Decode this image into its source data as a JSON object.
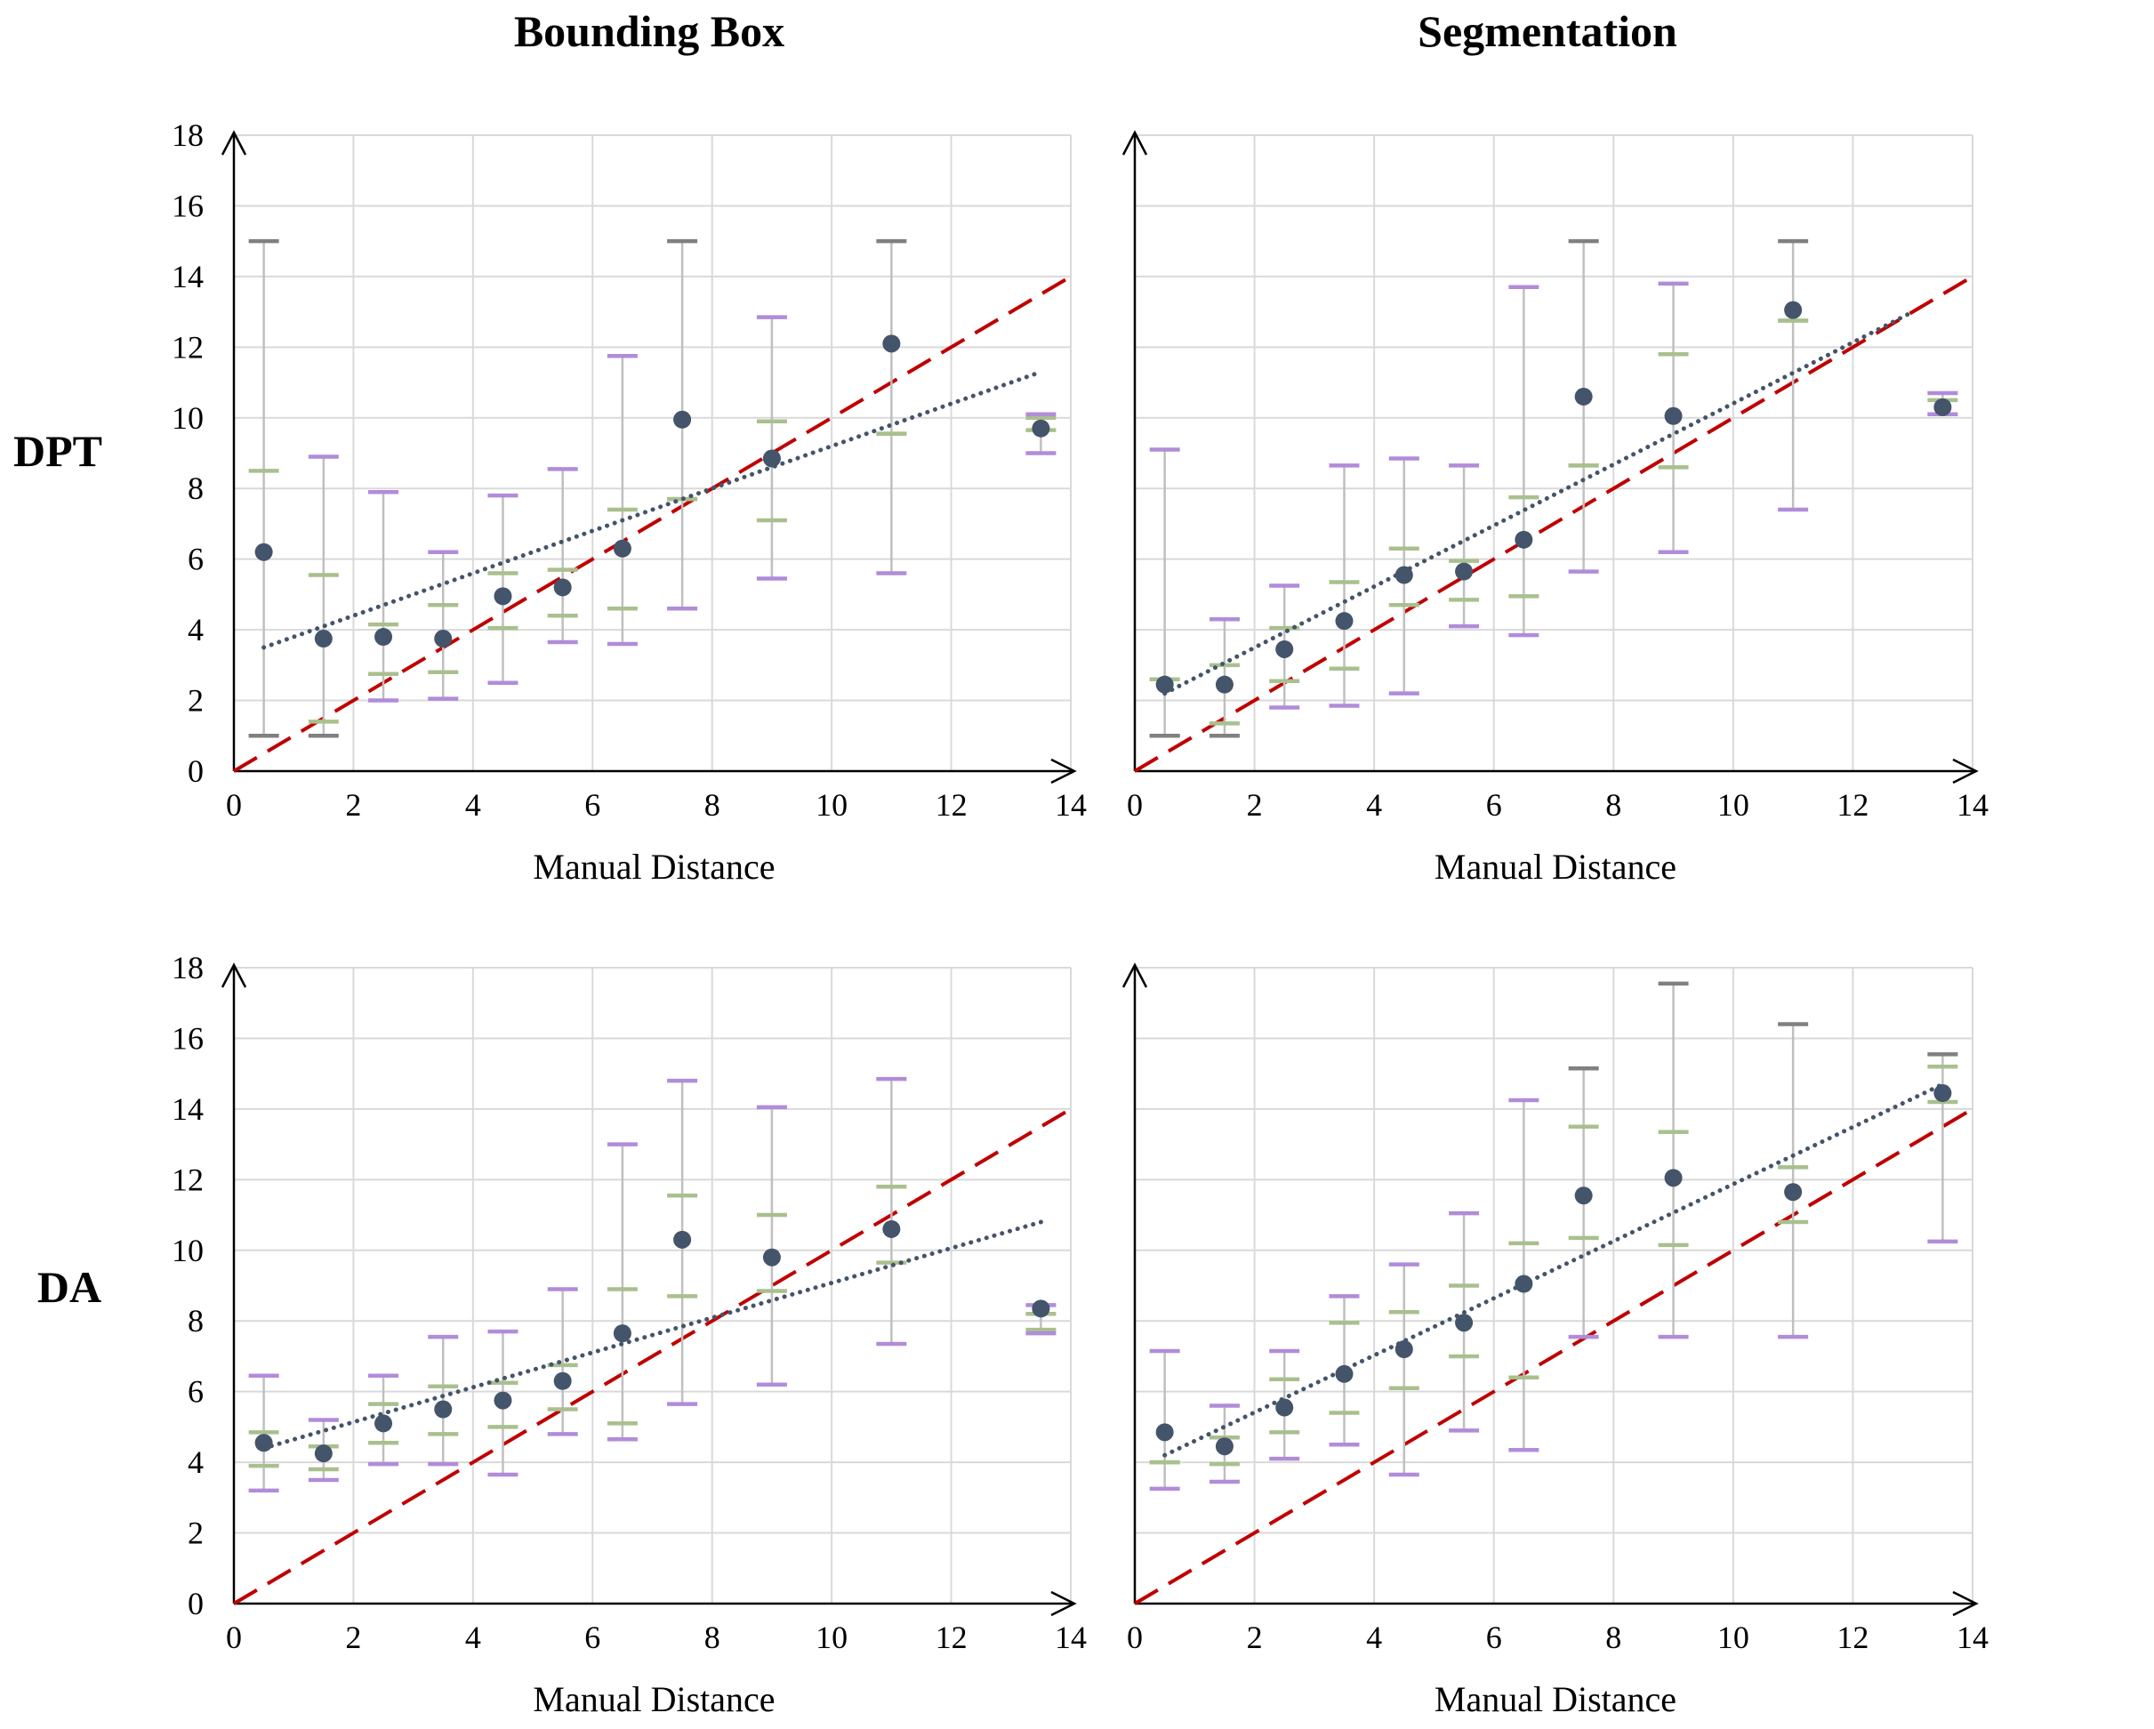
{
  "figure": {
    "column_titles": [
      "Bounding Box",
      "Segmentation"
    ],
    "row_labels": [
      "DPT",
      "DA"
    ],
    "colors": {
      "point": "#44546a",
      "trend": "#44546a",
      "identity": "#c00000",
      "whisker": "#bfbfbf",
      "outer_cap": "#b18cd9",
      "inner_cap": "#a9c08e",
      "outer_cap_at_limit": "#808080",
      "grid": "#d9d9d9"
    }
  },
  "chart_data": [
    {
      "type": "scatter",
      "column": "Bounding Box",
      "row": "DPT",
      "xlabel": "Manual Distance",
      "ylabel": "",
      "xlim": [
        0,
        14
      ],
      "ylim": [
        0,
        18
      ],
      "xticks": [
        0,
        2,
        4,
        6,
        8,
        10,
        12,
        14
      ],
      "yticks": [
        0,
        2,
        4,
        6,
        8,
        10,
        12,
        14,
        16,
        18
      ],
      "grid": true,
      "identity_line": true,
      "trendline": {
        "x0": 0.5,
        "y0": 3.5,
        "x1": 13.5,
        "y1": 11.3
      },
      "points": [
        {
          "x": 0.5,
          "y": 6.2,
          "outer": [
            1.0,
            15.0
          ],
          "inner": [
            1.0,
            8.5
          ]
        },
        {
          "x": 1.5,
          "y": 3.75,
          "outer": [
            1.0,
            8.9
          ],
          "inner": [
            1.4,
            5.55
          ]
        },
        {
          "x": 2.5,
          "y": 3.8,
          "outer": [
            2.0,
            7.9
          ],
          "inner": [
            2.75,
            4.15
          ]
        },
        {
          "x": 3.5,
          "y": 3.75,
          "outer": [
            2.05,
            6.2
          ],
          "inner": [
            2.8,
            4.7
          ]
        },
        {
          "x": 4.5,
          "y": 4.95,
          "outer": [
            2.5,
            7.8
          ],
          "inner": [
            4.05,
            5.6
          ]
        },
        {
          "x": 5.5,
          "y": 5.2,
          "outer": [
            3.65,
            8.55
          ],
          "inner": [
            4.4,
            5.7
          ]
        },
        {
          "x": 6.5,
          "y": 6.3,
          "outer": [
            3.6,
            11.75
          ],
          "inner": [
            4.6,
            7.4
          ]
        },
        {
          "x": 7.5,
          "y": 9.95,
          "outer": [
            4.6,
            15.0
          ],
          "inner": [
            7.7,
            7.7
          ]
        },
        {
          "x": 9.0,
          "y": 8.85,
          "outer": [
            5.45,
            12.85
          ],
          "inner": [
            7.1,
            9.9
          ]
        },
        {
          "x": 11.0,
          "y": 12.1,
          "outer": [
            5.6,
            15.0
          ],
          "inner": [
            9.55,
            9.55
          ]
        },
        {
          "x": 13.5,
          "y": 9.7,
          "outer": [
            9.0,
            10.1
          ],
          "inner": [
            9.65,
            10.0
          ]
        }
      ]
    },
    {
      "type": "scatter",
      "column": "Segmentation",
      "row": "DPT",
      "xlabel": "Manual Distance",
      "ylabel": "",
      "xlim": [
        0,
        14
      ],
      "ylim": [
        0,
        18
      ],
      "xticks": [
        0,
        2,
        4,
        6,
        8,
        10,
        12,
        14
      ],
      "yticks": [],
      "grid": true,
      "identity_line": true,
      "trendline": {
        "x0": 0.5,
        "y0": 2.2,
        "x1": 13.0,
        "y1": 13.0
      },
      "points": [
        {
          "x": 0.5,
          "y": 2.45,
          "outer": [
            1.0,
            9.1
          ],
          "inner": [
            1.0,
            2.6
          ]
        },
        {
          "x": 1.5,
          "y": 2.45,
          "outer": [
            1.0,
            4.3
          ],
          "inner": [
            1.35,
            3.0
          ]
        },
        {
          "x": 2.5,
          "y": 3.45,
          "outer": [
            1.8,
            5.25
          ],
          "inner": [
            2.55,
            4.05
          ]
        },
        {
          "x": 3.5,
          "y": 4.25,
          "outer": [
            1.85,
            8.65
          ],
          "inner": [
            2.9,
            5.35
          ]
        },
        {
          "x": 4.5,
          "y": 5.55,
          "outer": [
            2.2,
            8.85
          ],
          "inner": [
            4.7,
            6.3
          ]
        },
        {
          "x": 5.5,
          "y": 5.65,
          "outer": [
            4.1,
            8.65
          ],
          "inner": [
            4.85,
            5.95
          ]
        },
        {
          "x": 6.5,
          "y": 6.55,
          "outer": [
            3.85,
            13.7
          ],
          "inner": [
            4.95,
            7.75
          ]
        },
        {
          "x": 7.5,
          "y": 10.6,
          "outer": [
            5.65,
            15.0
          ],
          "inner": [
            8.65,
            8.65
          ]
        },
        {
          "x": 9.0,
          "y": 10.05,
          "outer": [
            6.2,
            13.8
          ],
          "inner": [
            8.6,
            11.8
          ]
        },
        {
          "x": 11.0,
          "y": 13.05,
          "outer": [
            7.4,
            15.0
          ],
          "inner": [
            12.75,
            12.75
          ]
        },
        {
          "x": 13.5,
          "y": 10.3,
          "outer": [
            10.1,
            10.7
          ],
          "inner": [
            10.1,
            10.5
          ]
        }
      ]
    },
    {
      "type": "scatter",
      "column": "Bounding Box",
      "row": "DA",
      "xlabel": "Manual Distance",
      "ylabel": "",
      "xlim": [
        0,
        14
      ],
      "ylim": [
        0,
        18
      ],
      "xticks": [
        0,
        2,
        4,
        6,
        8,
        10,
        12,
        14
      ],
      "yticks": [
        0,
        2,
        4,
        6,
        8,
        10,
        12,
        14,
        16,
        18
      ],
      "grid": true,
      "identity_line": true,
      "trendline": {
        "x0": 0.5,
        "y0": 4.4,
        "x1": 13.5,
        "y1": 10.8
      },
      "points": [
        {
          "x": 0.5,
          "y": 4.55,
          "outer": [
            3.2,
            6.45
          ],
          "inner": [
            3.9,
            4.85
          ]
        },
        {
          "x": 1.5,
          "y": 4.25,
          "outer": [
            3.5,
            5.2
          ],
          "inner": [
            3.8,
            4.45
          ]
        },
        {
          "x": 2.5,
          "y": 5.1,
          "outer": [
            3.95,
            6.45
          ],
          "inner": [
            4.55,
            5.65
          ]
        },
        {
          "x": 3.5,
          "y": 5.5,
          "outer": [
            3.95,
            7.55
          ],
          "inner": [
            4.8,
            6.15
          ]
        },
        {
          "x": 4.5,
          "y": 5.75,
          "outer": [
            3.65,
            7.7
          ],
          "inner": [
            5.0,
            6.25
          ]
        },
        {
          "x": 5.5,
          "y": 6.3,
          "outer": [
            4.8,
            8.9
          ],
          "inner": [
            5.5,
            6.75
          ]
        },
        {
          "x": 6.5,
          "y": 7.65,
          "outer": [
            4.65,
            13.0
          ],
          "inner": [
            5.1,
            8.9
          ]
        },
        {
          "x": 7.5,
          "y": 10.3,
          "outer": [
            5.65,
            14.8
          ],
          "inner": [
            8.7,
            11.55
          ]
        },
        {
          "x": 9.0,
          "y": 9.8,
          "outer": [
            6.2,
            14.05
          ],
          "inner": [
            8.85,
            11.0
          ]
        },
        {
          "x": 11.0,
          "y": 10.6,
          "outer": [
            7.35,
            14.85
          ],
          "inner": [
            9.65,
            11.8
          ]
        },
        {
          "x": 13.5,
          "y": 8.35,
          "outer": [
            7.65,
            8.45
          ],
          "inner": [
            7.75,
            8.2
          ]
        }
      ]
    },
    {
      "type": "scatter",
      "column": "Segmentation",
      "row": "DA",
      "xlabel": "Manual Distance",
      "ylabel": "",
      "xlim": [
        0,
        14
      ],
      "ylim": [
        0,
        18
      ],
      "xticks": [
        0,
        2,
        4,
        6,
        8,
        10,
        12,
        14
      ],
      "yticks": [],
      "grid": true,
      "identity_line": true,
      "trendline": {
        "x0": 0.5,
        "y0": 4.2,
        "x1": 13.5,
        "y1": 14.7
      },
      "points": [
        {
          "x": 0.5,
          "y": 4.85,
          "outer": [
            3.25,
            7.15
          ],
          "inner": [
            4.0,
            4.0
          ]
        },
        {
          "x": 1.5,
          "y": 4.45,
          "outer": [
            3.45,
            5.6
          ],
          "inner": [
            3.95,
            4.7
          ]
        },
        {
          "x": 2.5,
          "y": 5.55,
          "outer": [
            4.1,
            7.15
          ],
          "inner": [
            4.85,
            6.35
          ]
        },
        {
          "x": 3.5,
          "y": 6.5,
          "outer": [
            4.5,
            8.7
          ],
          "inner": [
            5.4,
            7.95
          ]
        },
        {
          "x": 4.5,
          "y": 7.2,
          "outer": [
            3.65,
            9.6
          ],
          "inner": [
            6.1,
            8.25
          ]
        },
        {
          "x": 5.5,
          "y": 7.95,
          "outer": [
            4.9,
            11.05
          ],
          "inner": [
            7.0,
            9.0
          ]
        },
        {
          "x": 6.5,
          "y": 9.05,
          "outer": [
            4.35,
            14.25
          ],
          "inner": [
            6.4,
            10.2
          ]
        },
        {
          "x": 7.5,
          "y": 11.55,
          "outer": [
            7.55,
            15.15
          ],
          "inner": [
            10.35,
            13.5
          ]
        },
        {
          "x": 9.0,
          "y": 12.05,
          "outer": [
            7.55,
            17.55
          ],
          "inner": [
            10.15,
            13.35
          ]
        },
        {
          "x": 11.0,
          "y": 11.65,
          "outer": [
            7.55,
            16.4
          ],
          "inner": [
            10.8,
            12.35
          ]
        },
        {
          "x": 13.5,
          "y": 14.45,
          "outer": [
            10.25,
            15.55
          ],
          "inner": [
            14.2,
            15.2
          ]
        }
      ]
    }
  ]
}
